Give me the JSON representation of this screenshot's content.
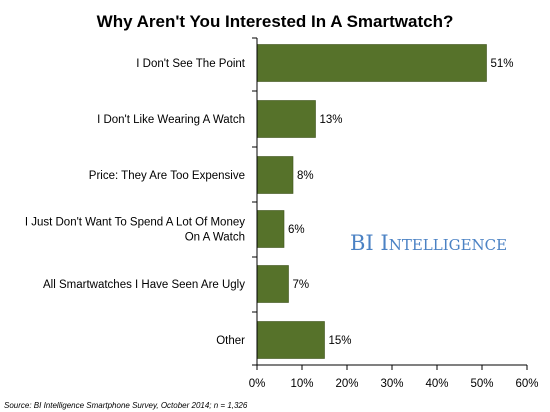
{
  "colors": {
    "bar": "#56722a",
    "bar_stroke": "#3d5219",
    "axis": "#000000",
    "watermark": "#4b82c4"
  },
  "watermark": {
    "text": "BI Intelligence"
  },
  "source_note": "Source: BI Intelligence Smartphone Survey, October 2014; n = 1,326",
  "chart_data": {
    "type": "bar",
    "orientation": "horizontal",
    "title": "Why Aren't You Interested In A Smartwatch?",
    "categories": [
      [
        "I Don't See The Point"
      ],
      [
        "I Don't Like Wearing A Watch"
      ],
      [
        "Price: They Are Too Expensive"
      ],
      [
        "I Just Don't Want To Spend A Lot Of Money",
        "On A Watch"
      ],
      [
        "All Smartwatches I Have Seen Are Ugly"
      ],
      [
        "Other"
      ]
    ],
    "values": [
      51,
      13,
      8,
      6,
      7,
      15
    ],
    "value_labels": [
      "51%",
      "13%",
      "8%",
      "6%",
      "7%",
      "15%"
    ],
    "xlim": [
      0,
      60
    ],
    "xticks": [
      0,
      10,
      20,
      30,
      40,
      50,
      60
    ],
    "xtick_labels": [
      "0%",
      "10%",
      "20%",
      "30%",
      "40%",
      "50%",
      "60%"
    ],
    "xlabel": "",
    "ylabel": "",
    "grid": false,
    "legend": "none"
  }
}
